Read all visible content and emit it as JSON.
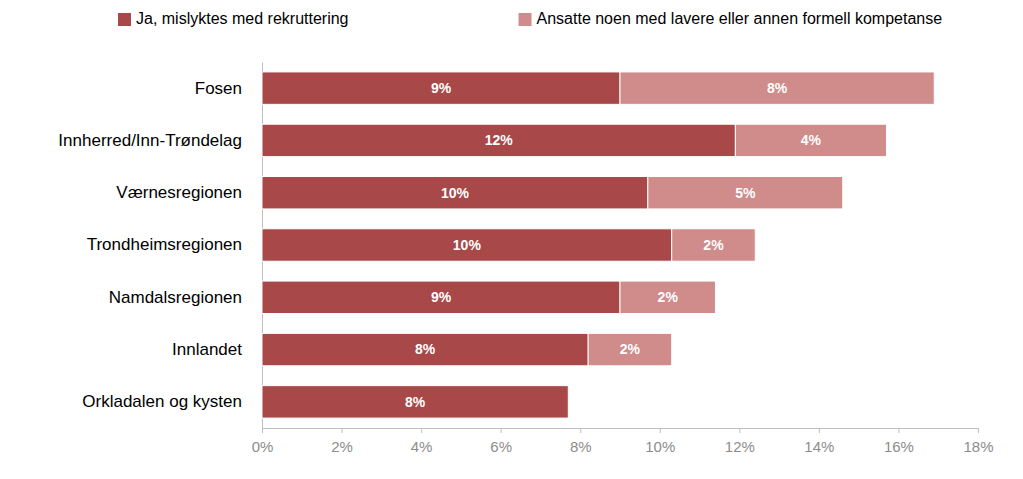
{
  "chart_data": {
    "type": "bar",
    "orientation": "horizontal",
    "stacked": true,
    "data_labels": true,
    "legend": "top",
    "grid": false,
    "categories": [
      "Fosen",
      "Innherred/Inn-Trøndelag",
      "Værnesregionen",
      "Trondheimsregionen",
      "Namdalsregionen",
      "Innlandet",
      "Orkladalen og kysten"
    ],
    "series": [
      {
        "name": "Ja, mislyktes med rekruttering",
        "color": "#a84848",
        "values": [
          9.0,
          11.9,
          9.7,
          10.3,
          9.0,
          8.2,
          7.7
        ],
        "value_labels": [
          "9%",
          "12%",
          "10%",
          "10%",
          "9%",
          "8%",
          "8%"
        ]
      },
      {
        "name": "Ansatte noen med lavere eller annen formell kompetanse",
        "color": "#d08b8b",
        "values": [
          7.9,
          3.8,
          4.9,
          2.1,
          2.4,
          2.1,
          0
        ],
        "value_labels": [
          "8%",
          "4%",
          "5%",
          "2%",
          "2%",
          "2%",
          null
        ]
      }
    ],
    "xlim": [
      0,
      18
    ],
    "xticks": [
      {
        "value": 0,
        "label": "0%"
      },
      {
        "value": 2,
        "label": "2%"
      },
      {
        "value": 4,
        "label": "4%"
      },
      {
        "value": 6,
        "label": "6%"
      },
      {
        "value": 8,
        "label": "8%"
      },
      {
        "value": 10,
        "label": "10%"
      },
      {
        "value": 12,
        "label": "12%"
      },
      {
        "value": 14,
        "label": "14%"
      },
      {
        "value": 16,
        "label": "16%"
      },
      {
        "value": 18,
        "label": "18%"
      }
    ]
  }
}
